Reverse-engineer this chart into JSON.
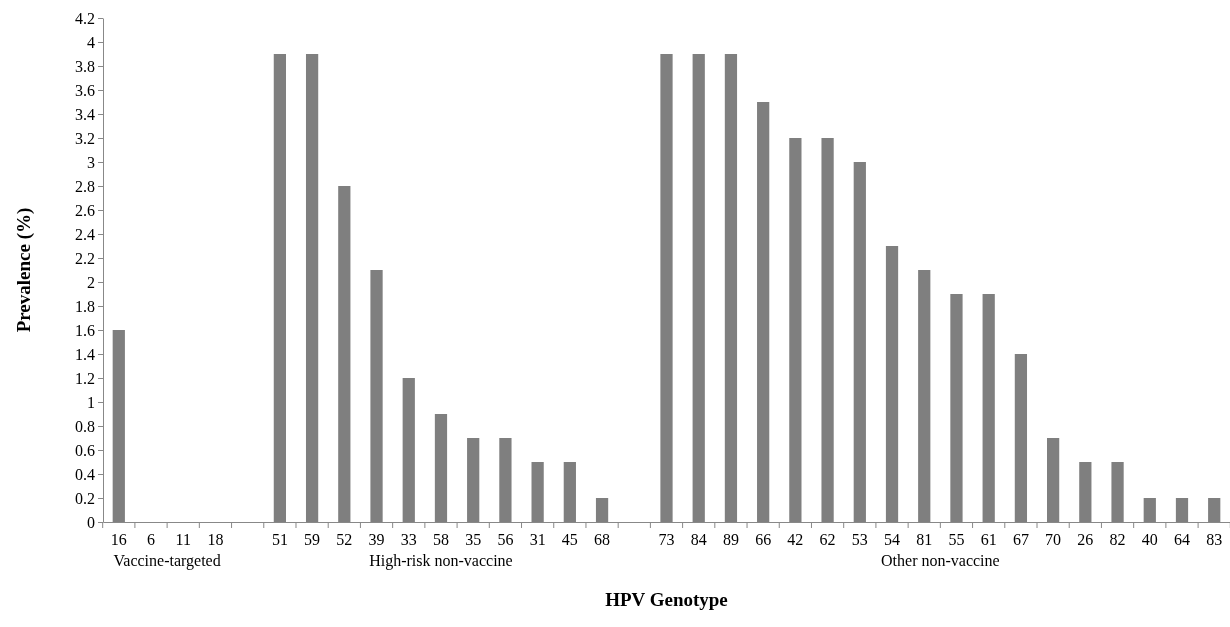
{
  "chart_data": {
    "type": "bar",
    "xlabel": "HPV Genotype",
    "ylabel": "Prevalence (%)",
    "categories": [
      "16",
      "6",
      "11",
      "18",
      null,
      "51",
      "59",
      "52",
      "39",
      "33",
      "58",
      "35",
      "56",
      "31",
      "45",
      "68",
      null,
      "73",
      "84",
      "89",
      "66",
      "42",
      "62",
      "53",
      "54",
      "81",
      "55",
      "61",
      "67",
      "70",
      "26",
      "82",
      "40",
      "64",
      "83"
    ],
    "values": [
      1.6,
      0,
      0,
      0,
      null,
      3.9,
      3.9,
      2.8,
      2.1,
      1.2,
      0.9,
      0.7,
      0.7,
      0.5,
      0.5,
      0.2,
      null,
      3.9,
      3.9,
      3.9,
      3.5,
      3.2,
      3.2,
      3.0,
      2.3,
      2.1,
      1.9,
      1.9,
      1.4,
      0.7,
      0.5,
      0.5,
      0.2,
      0.2,
      0.2
    ],
    "color": "#7f7f7f",
    "ylim": [
      0,
      4.2
    ],
    "yticks": [
      0,
      0.2,
      0.4,
      0.6,
      0.8,
      1,
      1.2,
      1.4,
      1.6,
      1.8,
      2,
      2.2,
      2.4,
      2.6,
      2.8,
      3,
      3.2,
      3.4,
      3.6,
      3.8,
      4,
      4.2
    ],
    "grid": false,
    "annotations": [
      "Vaccine-targeted",
      "High-risk non-vaccine",
      "Other non-vaccine"
    ]
  }
}
